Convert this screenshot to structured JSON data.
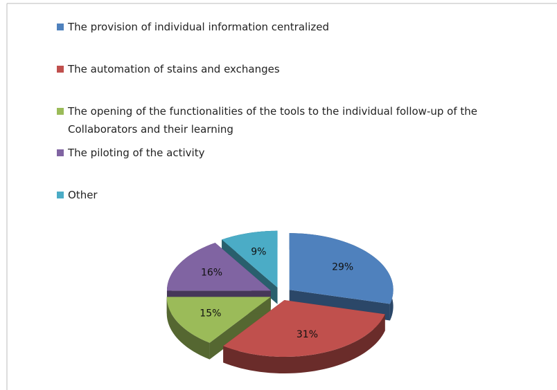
{
  "chart_data": {
    "type": "pie3d",
    "categories": [
      "The provision of individual information centralized",
      "The automation of stains and exchanges",
      "The opening of the functionalities of the tools to the individual follow-up of the Collaborators and their learning",
      "The piloting of the activity",
      "Other"
    ],
    "values": [
      29,
      31,
      15,
      16,
      9
    ],
    "value_labels": [
      "29%",
      "31%",
      "15%",
      "16%",
      "9%"
    ],
    "colors": [
      "#4f81bd",
      "#c0504d",
      "#9bbb59",
      "#8064a2",
      "#4bacc6"
    ],
    "legend": "top"
  }
}
